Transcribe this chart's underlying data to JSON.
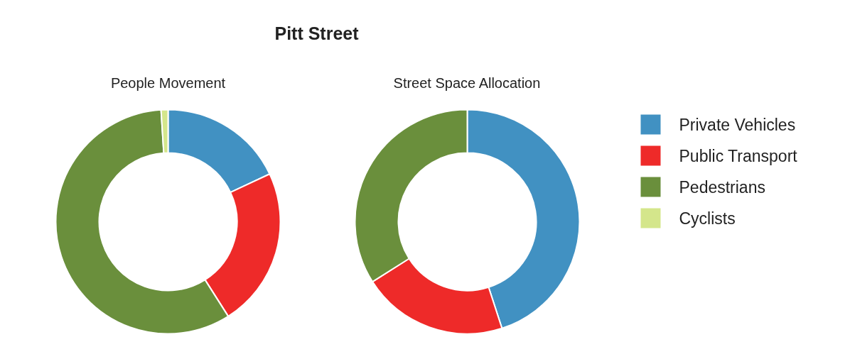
{
  "chart_data": [
    {
      "type": "donut",
      "title": "Pitt Street",
      "subtitle": "People Movement",
      "categories": [
        "Private Vehicles",
        "Public Transport",
        "Pedestrians",
        "Cyclists"
      ],
      "values": [
        18,
        23,
        58,
        1
      ],
      "colors": [
        "#4191c2",
        "#ee2a29",
        "#6a8f3c",
        "#d4e68b"
      ],
      "legend": "right"
    },
    {
      "type": "donut",
      "subtitle": "Street Space Allocation",
      "categories": [
        null,
        null,
        null,
        null
      ],
      "values": [
        45,
        21,
        34,
        0
      ],
      "colors": [
        "#4191c2",
        "#ee2a29",
        "#6a8f3c",
        "#d4e68b"
      ]
    }
  ]
}
